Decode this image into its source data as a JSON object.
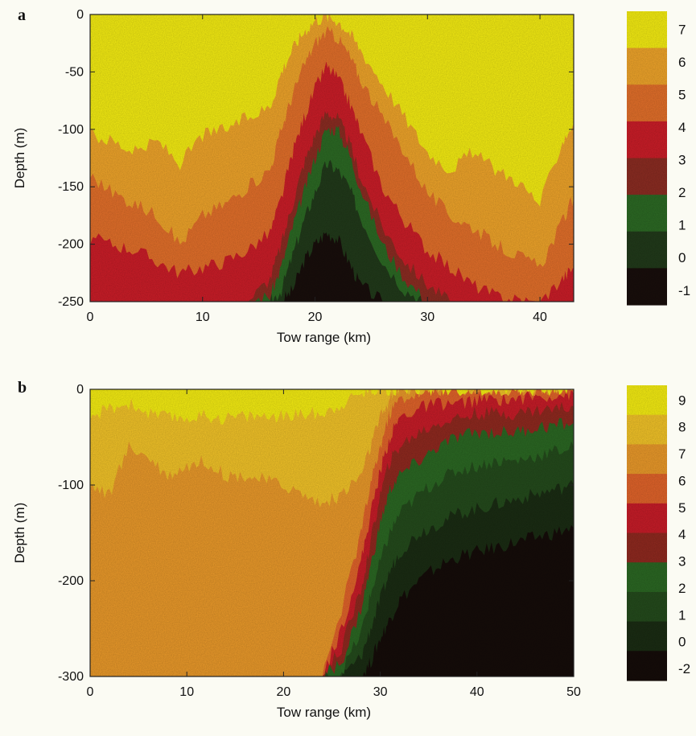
{
  "chart_data": [
    {
      "type": "heatmap",
      "panel_label": "a",
      "xlabel": "Tow range (km)",
      "ylabel": "Depth (m)",
      "xlim": [
        0,
        43
      ],
      "ylim": [
        -250,
        0
      ],
      "x_ticks": [
        0,
        10,
        20,
        30,
        40
      ],
      "y_ticks": [
        0,
        -50,
        -100,
        -150,
        -200,
        -250
      ],
      "colorbar_ticks": [
        7,
        6,
        5,
        4,
        3,
        2,
        1,
        0,
        -1
      ],
      "levels": [
        {
          "min": 6.5,
          "color": "#f6ee12"
        },
        {
          "min": 5.5,
          "color": "#f0a52a"
        },
        {
          "min": 4.5,
          "color": "#e4702a"
        },
        {
          "min": 3.5,
          "color": "#cc1d28"
        },
        {
          "min": 2.5,
          "color": "#8c2c22"
        },
        {
          "min": 1.5,
          "color": "#2c6a24"
        },
        {
          "min": 0.5,
          "color": "#213a1a"
        },
        {
          "min": -99,
          "color": "#180e0b"
        }
      ],
      "isoline_depths": {
        "x": [
          0,
          2,
          4,
          6,
          8,
          10,
          12,
          14,
          16,
          17,
          18,
          19,
          20,
          21,
          22,
          23,
          24,
          26,
          28,
          30,
          32,
          34,
          36,
          38,
          40,
          42,
          43
        ],
        "t6.5": [
          -105,
          -110,
          -120,
          -110,
          -130,
          -105,
          -100,
          -90,
          -80,
          -50,
          -30,
          -15,
          -5,
          -2,
          -5,
          -15,
          -30,
          -60,
          -90,
          -120,
          -135,
          -120,
          -135,
          -145,
          -165,
          -110,
          -95
        ],
        "t5.5": [
          -140,
          -155,
          -165,
          -175,
          -200,
          -175,
          -165,
          -150,
          -135,
          -100,
          -70,
          -45,
          -25,
          -15,
          -20,
          -35,
          -55,
          -90,
          -120,
          -155,
          -175,
          -185,
          -200,
          -210,
          -220,
          -180,
          -160
        ],
        "t4.5": [
          -195,
          -200,
          -205,
          -215,
          -225,
          -220,
          -215,
          -205,
          -190,
          -160,
          -120,
          -90,
          -65,
          -45,
          -55,
          -75,
          -100,
          -150,
          -180,
          -205,
          -220,
          -235,
          -245,
          -248,
          -250,
          -230,
          -220
        ],
        "t3.5": [
          -250,
          -250,
          -250,
          -250,
          -250,
          -250,
          -250,
          -250,
          -230,
          -200,
          -165,
          -130,
          -105,
          -85,
          -90,
          -110,
          -140,
          -185,
          -215,
          -235,
          -250,
          -250,
          -250,
          -250,
          -250,
          -250,
          -250
        ],
        "t2.5": [
          -250,
          -250,
          -250,
          -250,
          -250,
          -250,
          -250,
          -250,
          -245,
          -220,
          -185,
          -155,
          -125,
          -100,
          -100,
          -120,
          -150,
          -200,
          -230,
          -250,
          -250,
          -250,
          -250,
          -250,
          -250,
          -250,
          -250
        ],
        "t1.5": [
          -250,
          -250,
          -250,
          -250,
          -250,
          -250,
          -250,
          -250,
          -250,
          -240,
          -210,
          -180,
          -155,
          -130,
          -135,
          -150,
          -175,
          -215,
          -240,
          -250,
          -250,
          -250,
          -250,
          -250,
          -250,
          -250,
          -250
        ],
        "t0.5": [
          -250,
          -250,
          -250,
          -250,
          -250,
          -250,
          -250,
          -250,
          -250,
          -250,
          -240,
          -215,
          -200,
          -190,
          -195,
          -215,
          -235,
          -250,
          -250,
          -250,
          -250,
          -250,
          -250,
          -250,
          -250,
          -250,
          -250
        ]
      }
    },
    {
      "type": "heatmap",
      "panel_label": "b",
      "xlabel": "Tow range (km)",
      "ylabel": "Depth (m)",
      "xlim": [
        0,
        50
      ],
      "ylim": [
        -300,
        0
      ],
      "x_ticks": [
        0,
        10,
        20,
        30,
        40,
        50
      ],
      "y_ticks": [
        0,
        -100,
        -200,
        -300
      ],
      "colorbar_ticks": [
        9,
        8,
        7,
        6,
        5,
        4,
        3,
        2,
        1,
        0,
        -2
      ],
      "levels": [
        {
          "min": 8.5,
          "color": "#f6ee12"
        },
        {
          "min": 7.5,
          "color": "#f3c428"
        },
        {
          "min": 6.5,
          "color": "#eb9a2a"
        },
        {
          "min": 5.5,
          "color": "#e2642a"
        },
        {
          "min": 4.5,
          "color": "#c81c28"
        },
        {
          "min": 3.5,
          "color": "#90291f"
        },
        {
          "min": 2.5,
          "color": "#2b6823"
        },
        {
          "min": 1.5,
          "color": "#244b1c"
        },
        {
          "min": 0.5,
          "color": "#1a2c13"
        },
        {
          "min": -99,
          "color": "#150c09"
        }
      ],
      "isoline_depths": {
        "x": [
          0,
          2,
          4,
          6,
          8,
          10,
          12,
          14,
          16,
          18,
          20,
          22,
          24,
          26,
          28,
          29,
          30,
          31,
          32,
          34,
          36,
          38,
          40,
          42,
          44,
          46,
          48,
          50
        ],
        "t8.5": [
          -30,
          -20,
          -15,
          -25,
          -30,
          -30,
          -28,
          -30,
          -28,
          -28,
          -28,
          -26,
          -25,
          -15,
          -5,
          0,
          0,
          0,
          0,
          0,
          0,
          0,
          0,
          0,
          0,
          0,
          0,
          0
        ],
        "t7.5": [
          -100,
          -110,
          -60,
          -70,
          -90,
          -80,
          -75,
          -90,
          -90,
          -95,
          -100,
          -110,
          -120,
          -110,
          -90,
          -60,
          -30,
          -10,
          0,
          0,
          0,
          0,
          0,
          0,
          0,
          0,
          0,
          0
        ],
        "t6.5": [
          -300,
          -300,
          -300,
          -300,
          -300,
          -300,
          -300,
          -300,
          -300,
          -300,
          -300,
          -300,
          -300,
          -230,
          -150,
          -100,
          -60,
          -25,
          -10,
          -5,
          0,
          0,
          0,
          0,
          0,
          0,
          0,
          0
        ],
        "t5.5": [
          -300,
          -300,
          -300,
          -300,
          -300,
          -300,
          -300,
          -300,
          -300,
          -300,
          -300,
          -300,
          -300,
          -250,
          -180,
          -130,
          -85,
          -50,
          -30,
          -20,
          -15,
          -15,
          -12,
          -10,
          -10,
          -8,
          -6,
          -5
        ],
        "t4.5": [
          -300,
          -300,
          -300,
          -300,
          -300,
          -300,
          -300,
          -300,
          -300,
          -300,
          -300,
          -300,
          -300,
          -270,
          -210,
          -160,
          -110,
          -75,
          -60,
          -45,
          -35,
          -30,
          -25,
          -25,
          -25,
          -22,
          -20,
          -18
        ],
        "t3.5": [
          -300,
          -300,
          -300,
          -300,
          -300,
          -300,
          -300,
          -300,
          -300,
          -300,
          -300,
          -300,
          -300,
          -285,
          -230,
          -185,
          -140,
          -105,
          -90,
          -75,
          -60,
          -50,
          -45,
          -45,
          -45,
          -40,
          -38,
          -35
        ],
        "t2.5": [
          -300,
          -300,
          -300,
          -300,
          -300,
          -300,
          -300,
          -300,
          -300,
          -300,
          -300,
          -300,
          -300,
          -295,
          -255,
          -215,
          -180,
          -150,
          -130,
          -110,
          -95,
          -85,
          -80,
          -75,
          -75,
          -70,
          -65,
          -60
        ],
        "t1.5": [
          -300,
          -300,
          -300,
          -300,
          -300,
          -300,
          -300,
          -300,
          -300,
          -300,
          -300,
          -300,
          -300,
          -300,
          -280,
          -250,
          -220,
          -190,
          -170,
          -150,
          -140,
          -130,
          -125,
          -120,
          -115,
          -110,
          -105,
          -100
        ],
        "t0.5": [
          -300,
          -300,
          -300,
          -300,
          -300,
          -300,
          -300,
          -300,
          -300,
          -300,
          -300,
          -300,
          -300,
          -300,
          -300,
          -285,
          -260,
          -240,
          -220,
          -200,
          -185,
          -175,
          -170,
          -165,
          -160,
          -155,
          -150,
          -145
        ]
      }
    }
  ]
}
